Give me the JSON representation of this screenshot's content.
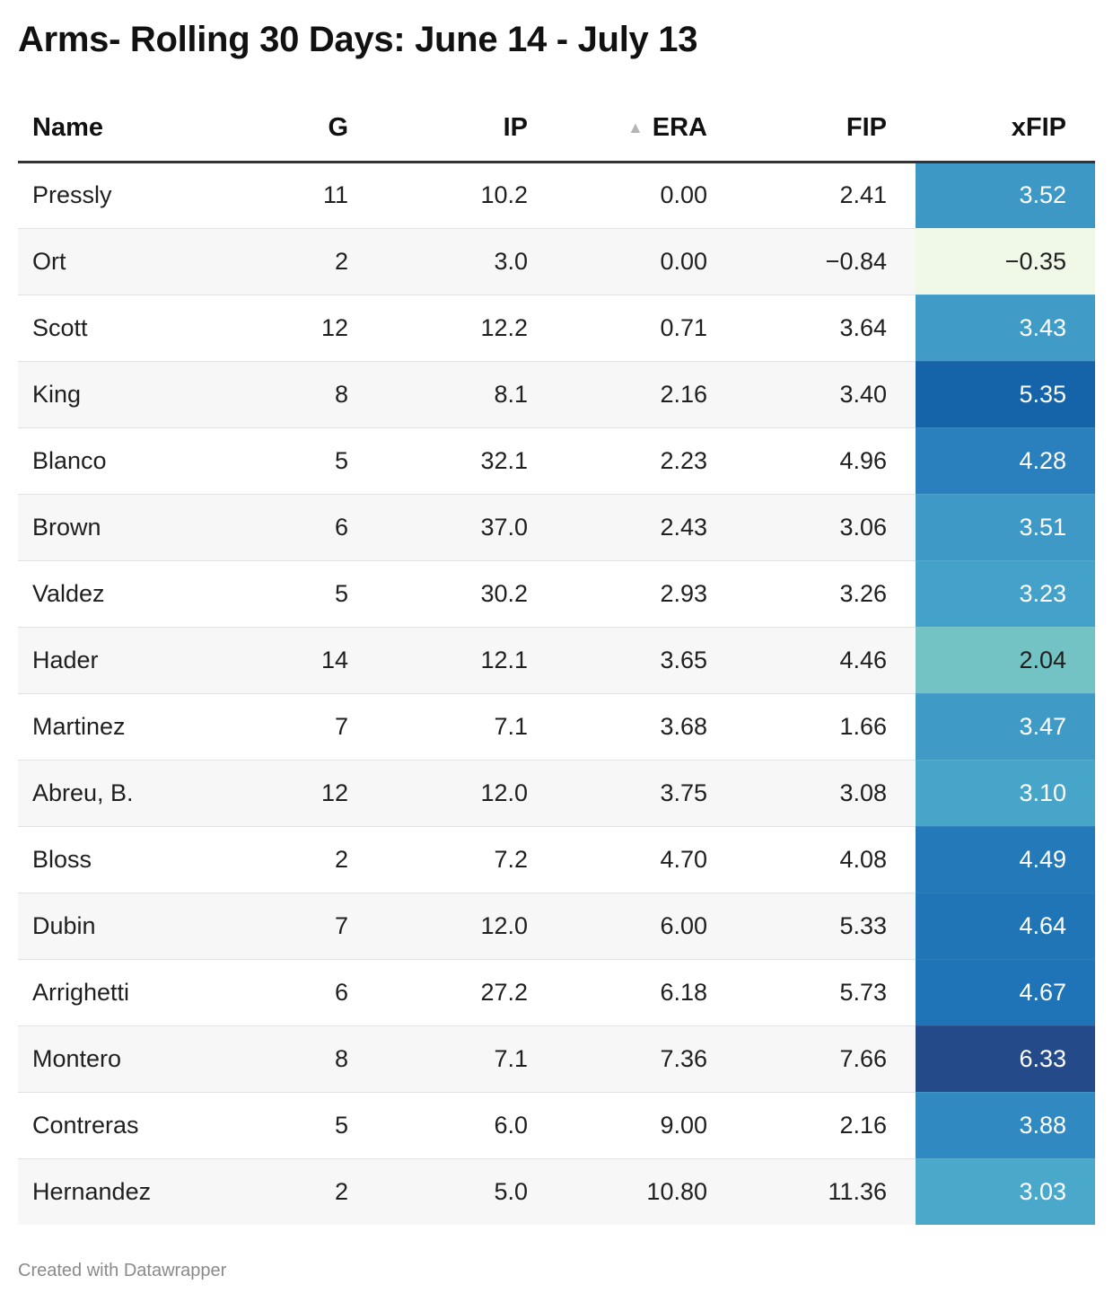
{
  "title": "Arms- Rolling 30 Days: June 14 - July 13",
  "footer": "Created with Datawrapper",
  "sort_indicator": "▲",
  "chart_data": {
    "type": "table",
    "columns": [
      "Name",
      "G",
      "IP",
      "ERA",
      "FIP",
      "xFIP"
    ],
    "sorted_column": "ERA",
    "sort_direction": "ascending",
    "heatmap_column": "xFIP",
    "rows": [
      [
        "Pressly",
        "11",
        "10.2",
        "0.00",
        "2.41",
        "3.52"
      ],
      [
        "Ort",
        "2",
        "3.0",
        "0.00",
        "−0.84",
        "−0.35"
      ],
      [
        "Scott",
        "12",
        "12.2",
        "0.71",
        "3.64",
        "3.43"
      ],
      [
        "King",
        "8",
        "8.1",
        "2.16",
        "3.40",
        "5.35"
      ],
      [
        "Blanco",
        "5",
        "32.1",
        "2.23",
        "4.96",
        "4.28"
      ],
      [
        "Brown",
        "6",
        "37.0",
        "2.43",
        "3.06",
        "3.51"
      ],
      [
        "Valdez",
        "5",
        "30.2",
        "2.93",
        "3.26",
        "3.23"
      ],
      [
        "Hader",
        "14",
        "12.1",
        "3.65",
        "4.46",
        "2.04"
      ],
      [
        "Martinez",
        "7",
        "7.1",
        "3.68",
        "1.66",
        "3.47"
      ],
      [
        "Abreu, B.",
        "12",
        "12.0",
        "3.75",
        "3.08",
        "3.10"
      ],
      [
        "Bloss",
        "2",
        "7.2",
        "4.70",
        "4.08",
        "4.49"
      ],
      [
        "Dubin",
        "7",
        "12.0",
        "6.00",
        "5.33",
        "4.64"
      ],
      [
        "Arrighetti",
        "6",
        "27.2",
        "6.18",
        "5.73",
        "4.67"
      ],
      [
        "Montero",
        "8",
        "7.1",
        "7.36",
        "7.66",
        "6.33"
      ],
      [
        "Contreras",
        "5",
        "6.0",
        "9.00",
        "2.16",
        "3.88"
      ],
      [
        "Hernandez",
        "2",
        "5.0",
        "10.80",
        "11.36",
        "3.03"
      ]
    ],
    "heat_colors": {
      "-0.35": "#f0f9e8",
      "2.04": "#73c3c5",
      "3.03": "#4aa8cb",
      "3.10": "#48a5ca",
      "3.23": "#44a1c9",
      "3.43": "#409bc7",
      "3.47": "#3f9ac6",
      "3.51": "#3e99c6",
      "3.52": "#3e98c6",
      "3.88": "#3189c2",
      "4.28": "#2a7fbd",
      "4.49": "#2479b9",
      "4.64": "#1f75b6",
      "4.67": "#1e74b6",
      "5.35": "#1563a8",
      "6.33": "#244a8a"
    },
    "heat_text": {
      "dark": "#1f1f1f",
      "light": "#ffffff"
    }
  }
}
